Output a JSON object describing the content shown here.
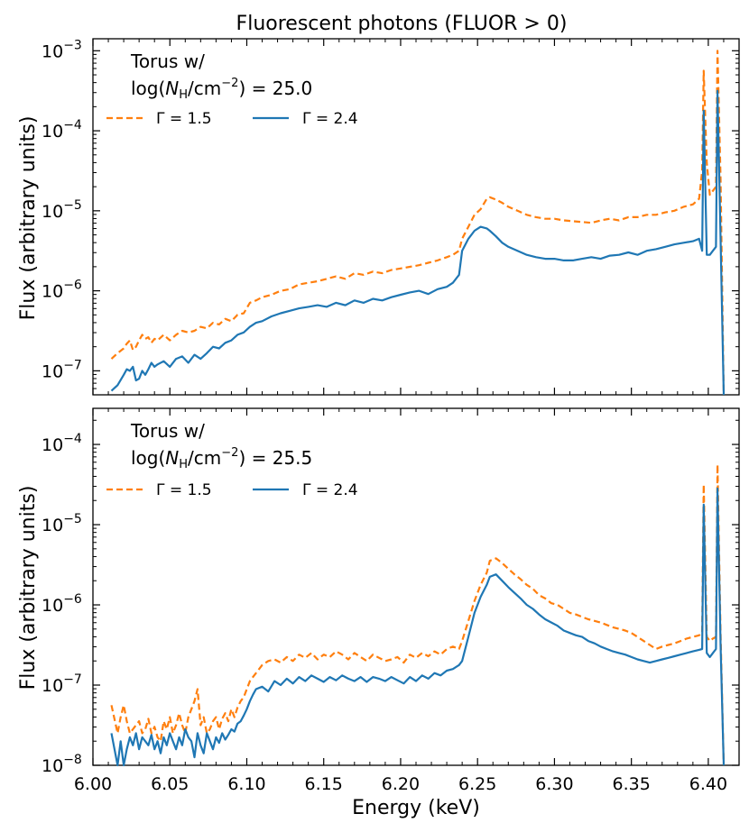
{
  "title": "Fluorescent photons (FLUOR > 0)",
  "xlabel": "Energy (keV)",
  "colors": {
    "gamma15": "#ff7f0e",
    "gamma24": "#1f77b4"
  },
  "panels": [
    {
      "ylabel": "Flux (arbitrary units)",
      "annotation_line1": "Torus w/",
      "annotation_log": "log(",
      "annotation_N": "N",
      "annotation_sub": "H",
      "annotation_unit": "/cm",
      "annotation_sup": "−2",
      "annotation_value": ") = 25.0",
      "legend": [
        "Γ = 1.5",
        "Γ = 2.4"
      ],
      "yticks": [
        "10",
        "10",
        "10",
        "10",
        "10"
      ],
      "ytick_exps": [
        "−7",
        "−6",
        "−5",
        "−4",
        "−3"
      ]
    },
    {
      "ylabel": "Flux (arbitrary units)",
      "annotation_line1": "Torus w/",
      "annotation_log": "log(",
      "annotation_N": "N",
      "annotation_sub": "H",
      "annotation_unit": "/cm",
      "annotation_sup": "−2",
      "annotation_value": ") = 25.5",
      "legend": [
        "Γ = 1.5",
        "Γ = 2.4"
      ],
      "yticks": [
        "10",
        "10",
        "10",
        "10",
        "10"
      ],
      "ytick_exps": [
        "−8",
        "−7",
        "−6",
        "−5",
        "−4"
      ]
    }
  ],
  "xticks": [
    "6.00",
    "6.05",
    "6.10",
    "6.15",
    "6.20",
    "6.25",
    "6.30",
    "6.35",
    "6.40"
  ],
  "chart_data": [
    {
      "type": "line",
      "title": "Fluorescent photons (FLUOR > 0)",
      "xlabel": "",
      "ylabel": "Flux (arbitrary units)",
      "yscale": "log",
      "xlim": [
        6.0,
        6.42
      ],
      "ylim_log10": [
        -7.3,
        -2.85
      ],
      "series": [
        {
          "name": "Γ = 1.5",
          "style": "dashed",
          "x": [
            6.012,
            6.016,
            6.02,
            6.022,
            6.024,
            6.026,
            6.028,
            6.03,
            6.032,
            6.034,
            6.036,
            6.038,
            6.04,
            6.042,
            6.046,
            6.05,
            6.054,
            6.058,
            6.062,
            6.066,
            6.07,
            6.074,
            6.078,
            6.082,
            6.086,
            6.09,
            6.094,
            6.098,
            6.102,
            6.106,
            6.11,
            6.116,
            6.122,
            6.128,
            6.134,
            6.14,
            6.146,
            6.152,
            6.158,
            6.164,
            6.17,
            6.176,
            6.182,
            6.188,
            6.194,
            6.2,
            6.206,
            6.212,
            6.218,
            6.224,
            6.23,
            6.234,
            6.238,
            6.24,
            6.244,
            6.248,
            6.252,
            6.256,
            6.258,
            6.262,
            6.266,
            6.27,
            6.276,
            6.282,
            6.288,
            6.294,
            6.3,
            6.306,
            6.312,
            6.318,
            6.324,
            6.33,
            6.336,
            6.342,
            6.348,
            6.354,
            6.36,
            6.366,
            6.372,
            6.378,
            6.384,
            6.39,
            6.394,
            6.396,
            6.397,
            6.399,
            6.401,
            6.403,
            6.405,
            6.406,
            6.408,
            6.41
          ],
          "y_log10": [
            -6.85,
            -6.78,
            -6.72,
            -6.66,
            -6.62,
            -6.74,
            -6.7,
            -6.62,
            -6.55,
            -6.6,
            -6.58,
            -6.65,
            -6.6,
            -6.62,
            -6.55,
            -6.62,
            -6.55,
            -6.5,
            -6.52,
            -6.5,
            -6.45,
            -6.47,
            -6.4,
            -6.42,
            -6.35,
            -6.38,
            -6.3,
            -6.28,
            -6.15,
            -6.12,
            -6.08,
            -6.05,
            -6.0,
            -5.98,
            -5.92,
            -5.9,
            -5.88,
            -5.85,
            -5.82,
            -5.85,
            -5.78,
            -5.8,
            -5.76,
            -5.78,
            -5.74,
            -5.72,
            -5.7,
            -5.68,
            -5.65,
            -5.62,
            -5.58,
            -5.55,
            -5.5,
            -5.35,
            -5.2,
            -5.05,
            -4.98,
            -4.85,
            -4.83,
            -4.86,
            -4.9,
            -4.95,
            -5.0,
            -5.05,
            -5.08,
            -5.1,
            -5.1,
            -5.12,
            -5.13,
            -5.14,
            -5.15,
            -5.12,
            -5.1,
            -5.12,
            -5.08,
            -5.08,
            -5.05,
            -5.05,
            -5.02,
            -5.0,
            -4.95,
            -4.92,
            -4.85,
            -4.5,
            -3.25,
            -4.4,
            -4.8,
            -4.75,
            -4.7,
            -3.0,
            -4.6,
            -7.3
          ]
        },
        {
          "name": "Γ = 2.4",
          "style": "solid",
          "x": [
            6.012,
            6.016,
            6.02,
            6.022,
            6.024,
            6.026,
            6.028,
            6.03,
            6.032,
            6.034,
            6.036,
            6.038,
            6.04,
            6.042,
            6.046,
            6.05,
            6.054,
            6.058,
            6.062,
            6.066,
            6.07,
            6.074,
            6.078,
            6.082,
            6.086,
            6.09,
            6.094,
            6.098,
            6.102,
            6.106,
            6.11,
            6.116,
            6.122,
            6.128,
            6.134,
            6.14,
            6.146,
            6.152,
            6.158,
            6.164,
            6.17,
            6.176,
            6.182,
            6.188,
            6.194,
            6.2,
            6.206,
            6.212,
            6.218,
            6.224,
            6.23,
            6.234,
            6.238,
            6.24,
            6.244,
            6.248,
            6.252,
            6.256,
            6.258,
            6.262,
            6.266,
            6.27,
            6.276,
            6.282,
            6.288,
            6.294,
            6.3,
            6.306,
            6.312,
            6.318,
            6.324,
            6.33,
            6.336,
            6.342,
            6.348,
            6.354,
            6.36,
            6.366,
            6.372,
            6.378,
            6.384,
            6.39,
            6.394,
            6.396,
            6.397,
            6.399,
            6.401,
            6.403,
            6.405,
            6.406,
            6.408,
            6.41
          ],
          "y_log10": [
            -7.25,
            -7.18,
            -7.05,
            -6.98,
            -7.0,
            -6.95,
            -7.12,
            -7.1,
            -7.0,
            -7.05,
            -6.98,
            -6.9,
            -6.95,
            -6.92,
            -6.88,
            -6.95,
            -6.85,
            -6.82,
            -6.9,
            -6.8,
            -6.85,
            -6.78,
            -6.7,
            -6.72,
            -6.65,
            -6.62,
            -6.55,
            -6.52,
            -6.45,
            -6.4,
            -6.38,
            -6.32,
            -6.28,
            -6.25,
            -6.22,
            -6.2,
            -6.18,
            -6.2,
            -6.15,
            -6.18,
            -6.12,
            -6.15,
            -6.1,
            -6.12,
            -6.08,
            -6.05,
            -6.02,
            -6.0,
            -6.04,
            -5.98,
            -5.95,
            -5.9,
            -5.8,
            -5.5,
            -5.35,
            -5.25,
            -5.2,
            -5.22,
            -5.25,
            -5.32,
            -5.4,
            -5.45,
            -5.5,
            -5.55,
            -5.58,
            -5.6,
            -5.6,
            -5.62,
            -5.62,
            -5.6,
            -5.58,
            -5.6,
            -5.56,
            -5.55,
            -5.52,
            -5.55,
            -5.5,
            -5.48,
            -5.45,
            -5.42,
            -5.4,
            -5.38,
            -5.35,
            -5.5,
            -3.75,
            -5.55,
            -5.55,
            -5.5,
            -5.45,
            -3.5,
            -5.35,
            -7.3
          ]
        }
      ]
    },
    {
      "type": "line",
      "xlabel": "Energy (keV)",
      "ylabel": "Flux (arbitrary units)",
      "yscale": "log",
      "xlim": [
        6.0,
        6.42
      ],
      "ylim_log10": [
        -8.0,
        -3.55
      ],
      "series": [
        {
          "name": "Γ = 1.5",
          "style": "dashed",
          "x": [
            6.012,
            6.016,
            6.018,
            6.02,
            6.022,
            6.024,
            6.026,
            6.028,
            6.03,
            6.032,
            6.034,
            6.036,
            6.038,
            6.04,
            6.042,
            6.044,
            6.046,
            6.048,
            6.05,
            6.052,
            6.054,
            6.056,
            6.058,
            6.06,
            6.062,
            6.064,
            6.066,
            6.068,
            6.07,
            6.072,
            6.074,
            6.076,
            6.078,
            6.08,
            6.082,
            6.084,
            6.086,
            6.088,
            6.09,
            6.092,
            6.094,
            6.096,
            6.098,
            6.1,
            6.102,
            6.104,
            6.106,
            6.11,
            6.114,
            6.118,
            6.122,
            6.126,
            6.13,
            6.134,
            6.138,
            6.142,
            6.146,
            6.15,
            6.154,
            6.158,
            6.162,
            6.166,
            6.17,
            6.174,
            6.178,
            6.182,
            6.186,
            6.19,
            6.194,
            6.198,
            6.202,
            6.206,
            6.21,
            6.214,
            6.218,
            6.222,
            6.226,
            6.23,
            6.234,
            6.238,
            6.24,
            6.244,
            6.248,
            6.252,
            6.256,
            6.258,
            6.262,
            6.266,
            6.27,
            6.274,
            6.278,
            6.282,
            6.286,
            6.29,
            6.294,
            6.298,
            6.302,
            6.306,
            6.31,
            6.314,
            6.318,
            6.322,
            6.326,
            6.33,
            6.334,
            6.338,
            6.342,
            6.346,
            6.35,
            6.354,
            6.358,
            6.362,
            6.366,
            6.37,
            6.374,
            6.378,
            6.382,
            6.386,
            6.39,
            6.394,
            6.396,
            6.397,
            6.399,
            6.401,
            6.403,
            6.405,
            6.406,
            6.408,
            6.41
          ],
          "y_log10": [
            -7.25,
            -7.6,
            -7.4,
            -7.25,
            -7.45,
            -7.6,
            -7.55,
            -7.5,
            -7.45,
            -7.6,
            -7.55,
            -7.42,
            -7.6,
            -7.52,
            -7.65,
            -7.7,
            -7.45,
            -7.55,
            -7.4,
            -7.6,
            -7.5,
            -7.35,
            -7.5,
            -7.6,
            -7.4,
            -7.3,
            -7.2,
            -7.05,
            -7.5,
            -7.4,
            -7.6,
            -7.55,
            -7.45,
            -7.4,
            -7.55,
            -7.42,
            -7.35,
            -7.45,
            -7.3,
            -7.4,
            -7.28,
            -7.2,
            -7.15,
            -7.05,
            -6.95,
            -6.9,
            -6.85,
            -6.75,
            -6.7,
            -6.68,
            -6.72,
            -6.65,
            -6.7,
            -6.62,
            -6.66,
            -6.6,
            -6.68,
            -6.62,
            -6.65,
            -6.58,
            -6.62,
            -6.68,
            -6.6,
            -6.65,
            -6.7,
            -6.62,
            -6.66,
            -6.7,
            -6.68,
            -6.65,
            -6.72,
            -6.62,
            -6.66,
            -6.6,
            -6.64,
            -6.58,
            -6.62,
            -6.55,
            -6.52,
            -6.55,
            -6.45,
            -6.2,
            -5.95,
            -5.75,
            -5.6,
            -5.45,
            -5.42,
            -5.48,
            -5.55,
            -5.62,
            -5.68,
            -5.75,
            -5.8,
            -5.88,
            -5.92,
            -5.98,
            -6.0,
            -6.05,
            -6.1,
            -6.12,
            -6.15,
            -6.18,
            -6.2,
            -6.22,
            -6.25,
            -6.28,
            -6.3,
            -6.32,
            -6.35,
            -6.4,
            -6.45,
            -6.5,
            -6.55,
            -6.52,
            -6.5,
            -6.48,
            -6.45,
            -6.42,
            -6.4,
            -6.38,
            -6.35,
            -4.5,
            -6.4,
            -6.45,
            -6.42,
            -6.4,
            -4.25,
            -6.35,
            -8.0
          ]
        },
        {
          "name": "Γ = 2.4",
          "style": "solid",
          "x": [
            6.012,
            6.016,
            6.018,
            6.02,
            6.022,
            6.024,
            6.026,
            6.028,
            6.03,
            6.032,
            6.034,
            6.036,
            6.038,
            6.04,
            6.042,
            6.044,
            6.046,
            6.048,
            6.05,
            6.052,
            6.054,
            6.056,
            6.058,
            6.06,
            6.062,
            6.064,
            6.066,
            6.068,
            6.07,
            6.072,
            6.074,
            6.076,
            6.078,
            6.08,
            6.082,
            6.084,
            6.086,
            6.088,
            6.09,
            6.092,
            6.094,
            6.096,
            6.098,
            6.1,
            6.102,
            6.104,
            6.106,
            6.11,
            6.114,
            6.118,
            6.122,
            6.126,
            6.13,
            6.134,
            6.138,
            6.142,
            6.146,
            6.15,
            6.154,
            6.158,
            6.162,
            6.166,
            6.17,
            6.174,
            6.178,
            6.182,
            6.186,
            6.19,
            6.194,
            6.198,
            6.202,
            6.206,
            6.21,
            6.214,
            6.218,
            6.222,
            6.226,
            6.23,
            6.234,
            6.238,
            6.24,
            6.244,
            6.248,
            6.252,
            6.256,
            6.258,
            6.262,
            6.266,
            6.27,
            6.274,
            6.278,
            6.282,
            6.286,
            6.29,
            6.294,
            6.298,
            6.302,
            6.306,
            6.31,
            6.314,
            6.318,
            6.322,
            6.326,
            6.33,
            6.334,
            6.338,
            6.342,
            6.346,
            6.35,
            6.354,
            6.358,
            6.362,
            6.366,
            6.37,
            6.374,
            6.378,
            6.382,
            6.386,
            6.39,
            6.394,
            6.396,
            6.397,
            6.399,
            6.401,
            6.403,
            6.405,
            6.406,
            6.408,
            6.41
          ],
          "y_log10": [
            -7.6,
            -8.0,
            -7.7,
            -8.0,
            -7.8,
            -7.65,
            -7.75,
            -7.6,
            -7.8,
            -7.65,
            -7.7,
            -7.75,
            -7.62,
            -7.8,
            -7.7,
            -7.85,
            -7.65,
            -7.75,
            -7.6,
            -7.7,
            -7.8,
            -7.65,
            -7.75,
            -7.55,
            -7.65,
            -7.7,
            -7.9,
            -7.6,
            -7.75,
            -7.85,
            -7.6,
            -7.7,
            -7.8,
            -7.65,
            -7.72,
            -7.6,
            -7.68,
            -7.62,
            -7.55,
            -7.58,
            -7.48,
            -7.45,
            -7.38,
            -7.3,
            -7.2,
            -7.12,
            -7.05,
            -7.02,
            -7.08,
            -6.95,
            -7.0,
            -6.92,
            -6.98,
            -6.9,
            -6.95,
            -6.88,
            -6.92,
            -6.96,
            -6.9,
            -6.94,
            -6.88,
            -6.92,
            -6.95,
            -6.9,
            -6.96,
            -6.9,
            -6.92,
            -6.95,
            -6.9,
            -6.94,
            -6.98,
            -6.9,
            -6.95,
            -6.88,
            -6.92,
            -6.85,
            -6.88,
            -6.82,
            -6.8,
            -6.75,
            -6.7,
            -6.4,
            -6.1,
            -5.9,
            -5.75,
            -5.65,
            -5.62,
            -5.7,
            -5.78,
            -5.85,
            -5.92,
            -6.0,
            -6.05,
            -6.12,
            -6.18,
            -6.22,
            -6.26,
            -6.32,
            -6.35,
            -6.38,
            -6.4,
            -6.45,
            -6.48,
            -6.52,
            -6.55,
            -6.58,
            -6.6,
            -6.62,
            -6.65,
            -6.68,
            -6.7,
            -6.72,
            -6.7,
            -6.68,
            -6.66,
            -6.64,
            -6.62,
            -6.6,
            -6.58,
            -6.56,
            -6.55,
            -4.75,
            -6.6,
            -6.65,
            -6.6,
            -6.55,
            -4.55,
            -6.5,
            -8.0
          ]
        }
      ]
    }
  ]
}
